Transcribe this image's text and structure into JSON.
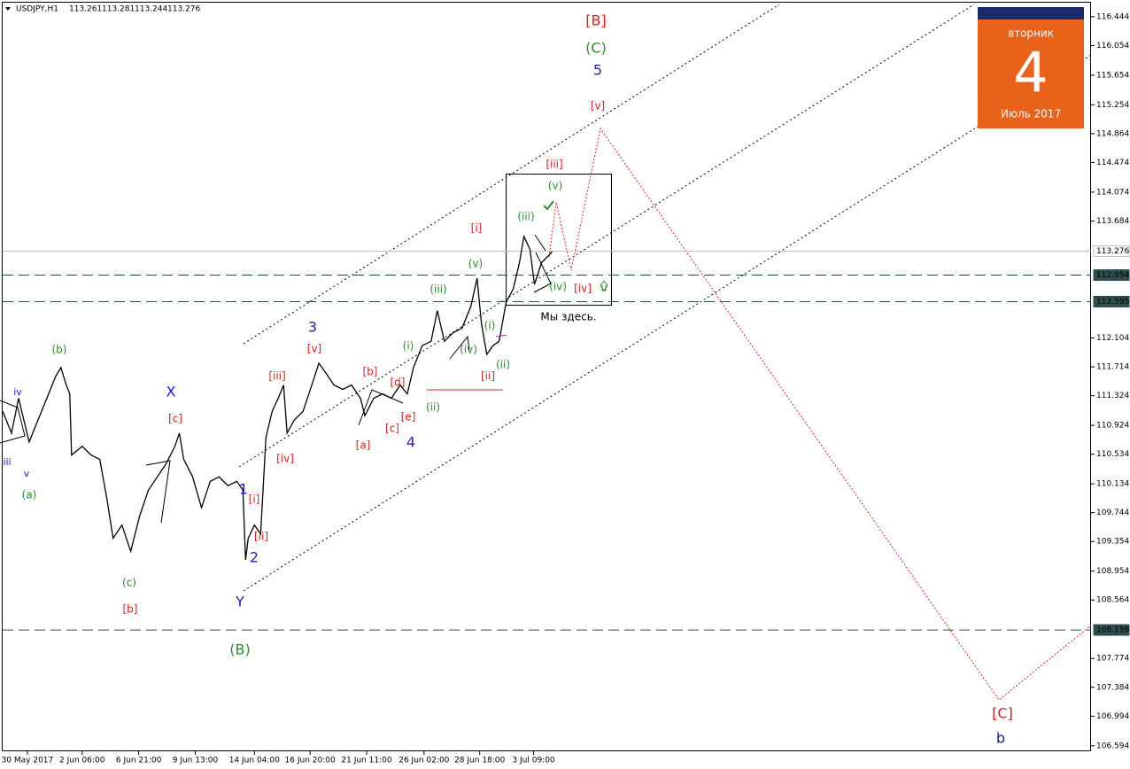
{
  "chart_data": {
    "type": "line",
    "title": "USDJPY,H1",
    "ohlc": [
      113.261,
      113.281,
      113.244,
      113.276
    ],
    "color": "#000000",
    "x": [
      0,
      10,
      18,
      30,
      40,
      50,
      60,
      66,
      72,
      76,
      78,
      90,
      100,
      110,
      118,
      125,
      135,
      145,
      155,
      165,
      175,
      185,
      195,
      200,
      205,
      215,
      225,
      235,
      245,
      255,
      265,
      272,
      275,
      278,
      285,
      292,
      298,
      305,
      312,
      318,
      322,
      330,
      340,
      350,
      358,
      365,
      375,
      385,
      395,
      405,
      410,
      420,
      430,
      440,
      450,
      458,
      465,
      475,
      485,
      492,
      500,
      510,
      520,
      530,
      537,
      542,
      548,
      555,
      562,
      570,
      578,
      585,
      590,
      597,
      602,
      610,
      620,
      622
    ],
    "values": [
      111.113,
      110.818,
      111.29,
      110.699,
      110.995,
      111.29,
      111.586,
      111.704,
      111.468,
      111.349,
      110.522,
      110.64,
      110.522,
      110.463,
      109.931,
      109.399,
      109.576,
      109.222,
      109.695,
      110.049,
      110.227,
      110.404,
      110.64,
      110.818,
      110.463,
      110.227,
      109.813,
      110.167,
      110.227,
      110.108,
      110.167,
      110.049,
      109.104,
      109.399,
      109.576,
      109.458,
      110.758,
      111.113,
      111.29,
      111.468,
      110.818,
      110.995,
      111.113,
      111.468,
      111.763,
      111.645,
      111.468,
      111.409,
      111.468,
      111.29,
      111.054,
      111.29,
      111.349,
      111.29,
      111.468,
      111.349,
      111.704,
      112.0,
      112.059,
      112.472,
      112.059,
      112.177,
      112.236,
      112.531,
      112.91,
      112.295,
      111.881,
      112.0,
      112.059,
      112.591,
      112.768,
      113.122,
      113.477,
      113.3,
      112.827,
      113.122,
      113.241,
      113.276
    ],
    "xlim": [
      0,
      1232
    ],
    "ylim": [
      106.52,
      116.67
    ],
    "xticks": [
      {
        "value": 28,
        "label": "30 May 2017"
      },
      {
        "value": 90,
        "label": "2 Jun 06:00"
      },
      {
        "value": 154,
        "label": "6 Jun 21:00"
      },
      {
        "value": 218,
        "label": "9 Jun 13:00"
      },
      {
        "value": 285,
        "label": "14 Jun 04:00"
      },
      {
        "value": 348,
        "label": "16 Jun 20:00"
      },
      {
        "value": 412,
        "label": "21 Jun 11:00"
      },
      {
        "value": 477,
        "label": "26 Jun 02:00"
      },
      {
        "value": 540,
        "label": "28 Jun 18:00"
      },
      {
        "value": 601,
        "label": "3 Jul 09:00"
      }
    ],
    "yticks": [
      116.444,
      116.054,
      115.654,
      115.254,
      114.864,
      114.474,
      114.074,
      113.684,
      112.104,
      111.714,
      111.324,
      110.924,
      110.534,
      110.134,
      109.744,
      109.354,
      108.954,
      108.564,
      107.774,
      107.384,
      106.994,
      106.594
    ],
    "levels": [
      {
        "value": 113.276,
        "style": "solid",
        "color": "#c0c0c0",
        "label_bg": "#ffffff",
        "label_color": "#000000"
      },
      {
        "value": 112.954,
        "style": "dashed",
        "color": "#2f4f4f",
        "label_bg": "#2f4f4f",
        "label_color": "#ffffff"
      },
      {
        "value": 112.595,
        "style": "dashed",
        "color": "#2f4f4f",
        "label_bg": "#2f4f4f",
        "label_color": "#ffffff"
      },
      {
        "value": 108.159,
        "style": "dashed",
        "color": "#2f4f4f",
        "label_bg": "#2f4f4f",
        "label_color": "#ffffff"
      }
    ],
    "labels": [
      {
        "text": "iv",
        "color": "#1c1cd8"
      },
      {
        "text": "iii",
        "color": "#1c1cd8"
      },
      {
        "text": "v",
        "color": "#1c1cd8"
      },
      {
        "text": "(a)",
        "color": "#2e8b2e"
      },
      {
        "text": "(b)",
        "color": "#2e8b2e"
      },
      {
        "text": "(c)",
        "color": "#2e8b2e"
      },
      {
        "text": "[b]",
        "color": "#e02020"
      },
      {
        "text": "X",
        "color": "#1c1cd8"
      },
      {
        "text": "[c]",
        "color": "#e02020"
      },
      {
        "text": "1",
        "color": "#1c1cd8"
      },
      {
        "text": "[i]",
        "color": "#e02020"
      },
      {
        "text": "[ii]",
        "color": "#e02020"
      },
      {
        "text": "2",
        "color": "#1c1cd8"
      },
      {
        "text": "Y",
        "color": "#1c1cd8"
      },
      {
        "text": "(B)",
        "color": "#2e8b2e"
      },
      {
        "text": "[iii]",
        "color": "#e02020"
      },
      {
        "text": "[iv]",
        "color": "#e02020"
      },
      {
        "text": "3",
        "color": "#1c1cd8"
      },
      {
        "text": "[v]",
        "color": "#e02020"
      },
      {
        "text": "[b]",
        "color": "#e02020"
      },
      {
        "text": "[a]",
        "color": "#e02020"
      },
      {
        "text": "[c]",
        "color": "#e02020"
      },
      {
        "text": "[d]",
        "color": "#e02020"
      },
      {
        "text": "[e]",
        "color": "#e02020"
      },
      {
        "text": "4",
        "color": "#1c1cd8"
      },
      {
        "text": "(i)",
        "color": "#2e8b2e"
      },
      {
        "text": "(ii)",
        "color": "#2e8b2e"
      },
      {
        "text": "(iii)",
        "color": "#2e8b2e"
      },
      {
        "text": "(iv)",
        "color": "#2e8b2e"
      },
      {
        "text": "(v)",
        "color": "#2e8b2e"
      },
      {
        "text": "[i]",
        "color": "#e02020"
      },
      {
        "text": "[ii]",
        "color": "#e02020"
      },
      {
        "text": "(i)",
        "color": "#2e8b2e"
      },
      {
        "text": "(ii)",
        "color": "#2e8b2e"
      },
      {
        "text": "(iii)",
        "color": "#2e8b2e"
      },
      {
        "text": "[iii]",
        "color": "#e02020"
      },
      {
        "text": "(v)",
        "color": "#2e8b2e"
      },
      {
        "text": "(iv)",
        "color": "#2e8b2e"
      },
      {
        "text": "[iv]",
        "color": "#e02020"
      },
      {
        "text": "[v]",
        "color": "#e02020"
      },
      {
        "text": "5",
        "color": "#1c1cd8"
      },
      {
        "text": "(C)",
        "color": "#2e8b2e"
      },
      {
        "text": "[B]",
        "color": "#e02020"
      },
      {
        "text": "[C]",
        "color": "#e02020"
      },
      {
        "text": "b",
        "color": "#1020a0"
      },
      {
        "text": "Мы здесь.",
        "color": "#000000"
      }
    ],
    "calendar": {
      "weekday": "вторник",
      "day": 4,
      "month": "Июль 2017"
    }
  }
}
